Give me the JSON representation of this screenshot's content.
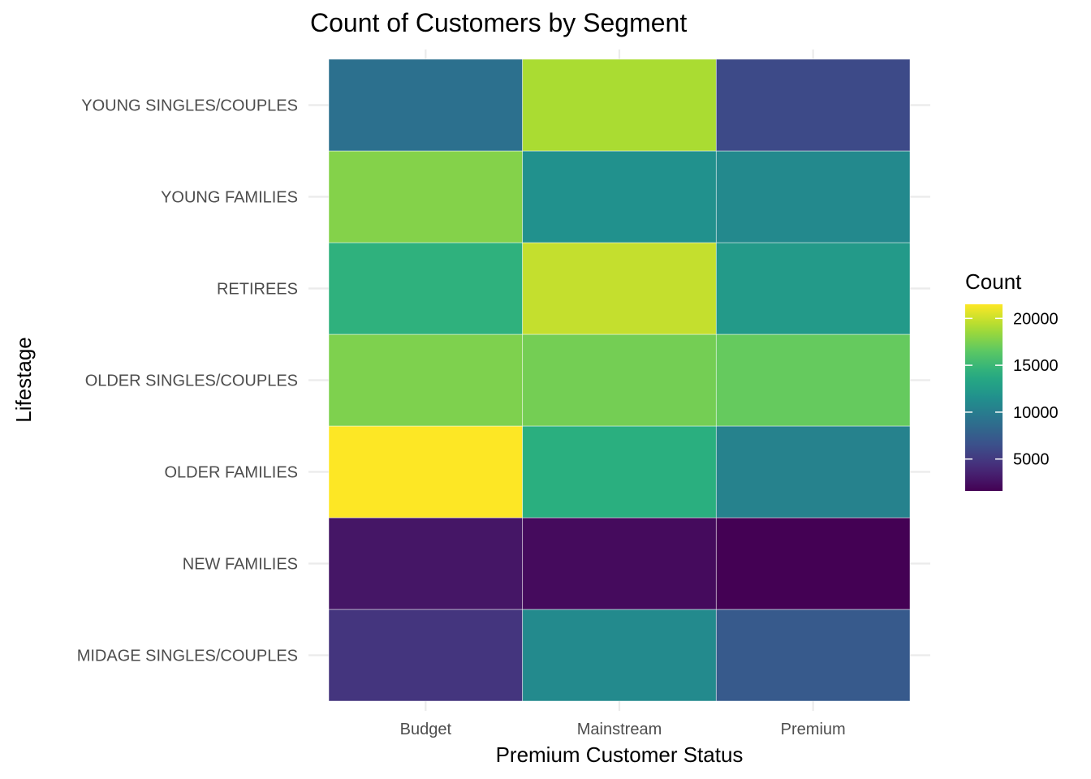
{
  "chart_data": {
    "type": "heatmap",
    "title": "Count of Customers by Segment",
    "xlabel": "Premium Customer Status",
    "ylabel": "Lifestage",
    "x_categories": [
      "Budget",
      "Mainstream",
      "Premium"
    ],
    "y_categories": [
      "MIDAGE SINGLES/COUPLES",
      "NEW FAMILIES",
      "OLDER FAMILIES",
      "OLDER SINGLES/COUPLES",
      "RETIREES",
      "YOUNG FAMILIES",
      "YOUNG SINGLES/COUPLES"
    ],
    "values": [
      [
        4700,
        11100,
        7300
      ],
      [
        2800,
        2200,
        1600
      ],
      [
        21500,
        14200,
        10400
      ],
      [
        17600,
        17300,
        16800
      ],
      [
        14400,
        19800,
        12400
      ],
      [
        17800,
        11600,
        11000
      ],
      [
        9000,
        19000,
        6100
      ]
    ],
    "legend": {
      "title": "Count",
      "position": "right",
      "ticks": [
        5000,
        10000,
        15000,
        20000
      ],
      "range": [
        1600,
        21500
      ],
      "colormap": "viridis"
    },
    "grid": true
  }
}
